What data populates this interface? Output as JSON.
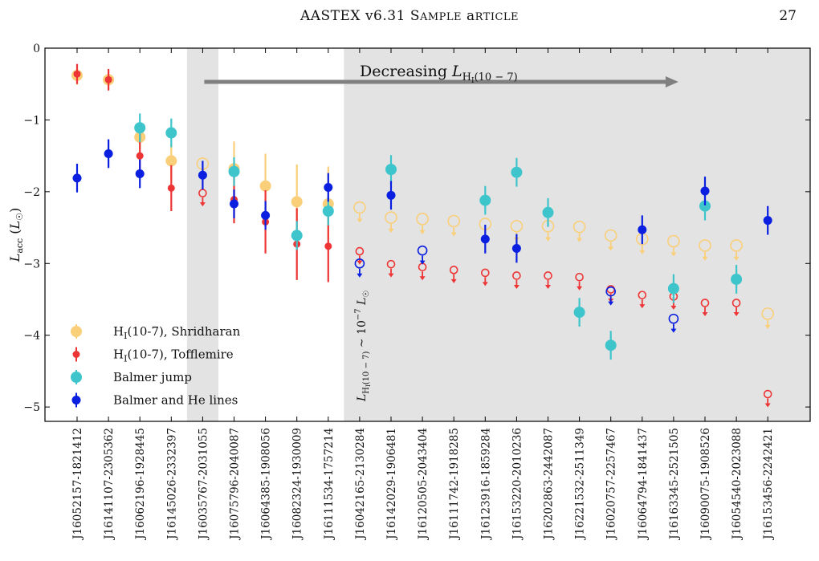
{
  "header": {
    "running_title": "AASTeX v6.31 Sample article",
    "page_number": "27"
  },
  "colors": {
    "shridharan": "#f9cf7a",
    "tofflemire": "#ee3535",
    "balmer_jump": "#3ec5cc",
    "balmer_he": "#0a1fe0",
    "shade": "#e3e3e3",
    "arrow": "#808080"
  },
  "chart_data": {
    "type": "scatter",
    "ylabel": "L_acc (L_☉)",
    "ylim": [
      -5.2,
      0
    ],
    "yticks": [
      0,
      -1,
      -2,
      -3,
      -4,
      -5
    ],
    "ytick_labels": [
      "0",
      "−1",
      "−2",
      "−3",
      "−4",
      "−5"
    ],
    "categories": [
      "J16052157-1821412",
      "J16141107-2305362",
      "J16062196-1928445",
      "J16145026-2332397",
      "J16035767-2031055",
      "J16075796-2040087",
      "J16064385-1908056",
      "J16082324-1930009",
      "J16111534-1757214",
      "J16042165-2130284",
      "J16142029-1906481",
      "J16120505-2043404",
      "J16111742-1918285",
      "J16123916-1859284",
      "J16153220-2010236",
      "J16202863-2442087",
      "J16221532-2511349",
      "J16020757-2257467",
      "J16064794-1841437",
      "J16163345-2521505",
      "J16090075-1908526",
      "J16054540-2023088",
      "J16153456-2242421"
    ],
    "shaded_category_ranges": [
      [
        4,
        4
      ],
      [
        9,
        22
      ]
    ],
    "annotations": {
      "arrow_text_prefix": "Decreasing ",
      "arrow_text_var": "L",
      "arrow_text_sub": "H",
      "arrow_text_subsub": "I",
      "arrow_text_paren": "(10 − 7)",
      "vertical_note_lhs": "L",
      "vertical_note_sub": "H",
      "vertical_note_subsub": "I",
      "vertical_note_paren": "(10 − 7)",
      "vertical_note_rhs": " ~ 10",
      "vertical_note_exp": "−7",
      "vertical_note_unit": " L",
      "vertical_note_unit_sub": "☉"
    },
    "series": [
      {
        "name": "H_I(10-7), Shridharan",
        "legend_prefix": "H",
        "legend_sub": "I",
        "legend_suffix": "(10-7), Shridharan",
        "color_key": "shridharan",
        "marker": "big",
        "points": [
          {
            "i": 0,
            "y": -0.38,
            "err": 0.13
          },
          {
            "i": 1,
            "y": -0.44,
            "err": 0.05
          },
          {
            "i": 2,
            "y": -1.24,
            "err": 0.16
          },
          {
            "i": 3,
            "y": -1.57,
            "err": 0.25
          },
          {
            "i": 4,
            "y": -1.61,
            "err": 0.0,
            "open": true
          },
          {
            "i": 5,
            "y": -1.68,
            "err": 0.38
          },
          {
            "i": 6,
            "y": -1.92,
            "err": 0.45
          },
          {
            "i": 7,
            "y": -2.14,
            "err": 0.52
          },
          {
            "i": 8,
            "y": -2.17,
            "err": 0.52
          },
          {
            "i": 9,
            "y": -2.22,
            "upper": true,
            "open": true
          },
          {
            "i": 10,
            "y": -2.36,
            "upper": true,
            "open": true
          },
          {
            "i": 11,
            "y": -2.38,
            "upper": true,
            "open": true
          },
          {
            "i": 12,
            "y": -2.41,
            "upper": true,
            "open": true
          },
          {
            "i": 13,
            "y": -2.45,
            "upper": true,
            "open": true
          },
          {
            "i": 14,
            "y": -2.48,
            "upper": true,
            "open": true
          },
          {
            "i": 15,
            "y": -2.48,
            "upper": true,
            "open": true
          },
          {
            "i": 16,
            "y": -2.49,
            "upper": true,
            "open": true
          },
          {
            "i": 17,
            "y": -2.61,
            "upper": true,
            "open": true
          },
          {
            "i": 18,
            "y": -2.66,
            "upper": true,
            "open": true
          },
          {
            "i": 19,
            "y": -2.69,
            "upper": true,
            "open": true
          },
          {
            "i": 20,
            "y": -2.75,
            "upper": true,
            "open": true
          },
          {
            "i": 21,
            "y": -2.75,
            "upper": true,
            "open": true
          },
          {
            "i": 22,
            "y": -3.7,
            "upper": true,
            "open": true
          }
        ]
      },
      {
        "name": "H_I(10-7), Tofflemire",
        "legend_prefix": "H",
        "legend_sub": "I",
        "legend_suffix": "(10-7), Tofflemire",
        "color_key": "tofflemire",
        "marker": "small",
        "points": [
          {
            "i": 0,
            "y": -0.36,
            "err": 0.14
          },
          {
            "i": 1,
            "y": -0.44,
            "err": 0.15
          },
          {
            "i": 2,
            "y": -1.5,
            "err": 0.3
          },
          {
            "i": 3,
            "y": -1.95,
            "err": 0.32
          },
          {
            "i": 4,
            "y": -2.02,
            "upper": true,
            "open": true
          },
          {
            "i": 5,
            "y": -2.11,
            "err": 0.33
          },
          {
            "i": 6,
            "y": -2.42,
            "err": 0.44
          },
          {
            "i": 7,
            "y": -2.73,
            "err": 0.5
          },
          {
            "i": 8,
            "y": -2.76,
            "err": 0.5
          },
          {
            "i": 9,
            "y": -2.83,
            "upper": true,
            "open": true
          },
          {
            "i": 10,
            "y": -3.01,
            "upper": true,
            "open": true
          },
          {
            "i": 11,
            "y": -3.05,
            "upper": true,
            "open": true
          },
          {
            "i": 12,
            "y": -3.09,
            "upper": true,
            "open": true
          },
          {
            "i": 13,
            "y": -3.13,
            "upper": true,
            "open": true
          },
          {
            "i": 14,
            "y": -3.17,
            "upper": true,
            "open": true
          },
          {
            "i": 15,
            "y": -3.17,
            "upper": true,
            "open": true
          },
          {
            "i": 16,
            "y": -3.19,
            "upper": true,
            "open": true
          },
          {
            "i": 17,
            "y": -3.36,
            "upper": true,
            "open": true
          },
          {
            "i": 18,
            "y": -3.44,
            "upper": true,
            "open": true
          },
          {
            "i": 19,
            "y": -3.46,
            "upper": true,
            "open": true
          },
          {
            "i": 20,
            "y": -3.55,
            "upper": true,
            "open": true
          },
          {
            "i": 21,
            "y": -3.55,
            "upper": true,
            "open": true
          },
          {
            "i": 22,
            "y": -4.82,
            "upper": true,
            "open": true
          }
        ]
      },
      {
        "name": "Balmer jump",
        "legend_prefix": "Balmer jump",
        "color_key": "balmer_jump",
        "marker": "big",
        "points": [
          {
            "i": 2,
            "y": -1.11,
            "err": 0.2
          },
          {
            "i": 3,
            "y": -1.18,
            "err": 0.2
          },
          {
            "i": 5,
            "y": -1.72,
            "err": 0.2
          },
          {
            "i": 7,
            "y": -2.61,
            "err": 0.2
          },
          {
            "i": 8,
            "y": -2.27,
            "err": 0.2
          },
          {
            "i": 10,
            "y": -1.69,
            "err": 0.2
          },
          {
            "i": 13,
            "y": -2.12,
            "err": 0.2
          },
          {
            "i": 14,
            "y": -1.73,
            "err": 0.2
          },
          {
            "i": 15,
            "y": -2.29,
            "err": 0.2
          },
          {
            "i": 16,
            "y": -3.68,
            "err": 0.2
          },
          {
            "i": 17,
            "y": -4.14,
            "err": 0.2
          },
          {
            "i": 19,
            "y": -3.35,
            "err": 0.2
          },
          {
            "i": 20,
            "y": -2.2,
            "err": 0.2
          },
          {
            "i": 21,
            "y": -3.22,
            "err": 0.2
          }
        ]
      },
      {
        "name": "Balmer and He lines",
        "legend_prefix": "Balmer and He lines",
        "color_key": "balmer_he",
        "marker": "medium",
        "points": [
          {
            "i": 0,
            "y": -1.81,
            "err": 0.2
          },
          {
            "i": 1,
            "y": -1.47,
            "err": 0.2
          },
          {
            "i": 2,
            "y": -1.75,
            "err": 0.2
          },
          {
            "i": 4,
            "y": -1.77,
            "err": 0.2
          },
          {
            "i": 5,
            "y": -2.17,
            "err": 0.2
          },
          {
            "i": 6,
            "y": -2.33,
            "err": 0.2
          },
          {
            "i": 8,
            "y": -1.94,
            "err": 0.2
          },
          {
            "i": 9,
            "y": -3.0,
            "upper": true,
            "open": true
          },
          {
            "i": 10,
            "y": -2.05,
            "err": 0.2
          },
          {
            "i": 11,
            "y": -2.82,
            "upper": true,
            "open": true
          },
          {
            "i": 13,
            "y": -2.66,
            "err": 0.2
          },
          {
            "i": 14,
            "y": -2.79,
            "err": 0.2
          },
          {
            "i": 17,
            "y": -3.39,
            "upper": true,
            "open": true
          },
          {
            "i": 18,
            "y": -2.53,
            "err": 0.2
          },
          {
            "i": 19,
            "y": -3.77,
            "upper": true,
            "open": true
          },
          {
            "i": 20,
            "y": -1.99,
            "err": 0.2
          },
          {
            "i": 22,
            "y": -2.4,
            "err": 0.2
          }
        ]
      }
    ],
    "legend_position": "lower-left"
  }
}
